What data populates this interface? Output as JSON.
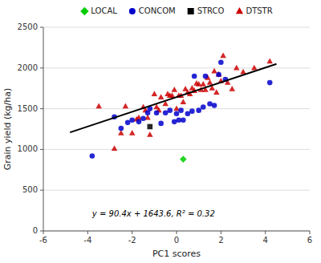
{
  "chart_data": {
    "type": "scatter",
    "xlabel": "PC1 scores",
    "ylabel": "Grain yield (kg/ha)",
    "xlim": [
      -6.0,
      6.0
    ],
    "ylim": [
      0,
      2500
    ],
    "xticks": [
      -6,
      -4,
      -2,
      0,
      2,
      4,
      6
    ],
    "yticks": [
      0,
      500,
      1000,
      1500,
      2000,
      2500
    ],
    "grid": "y",
    "legend": "top",
    "series": [
      {
        "name": "LOCAL",
        "color": "#00cc00",
        "marker": "diamond",
        "x": [
          0.3
        ],
        "y": [
          880
        ]
      },
      {
        "name": "CONCOM",
        "color": "#0000cc",
        "marker": "circle",
        "x": [
          -3.8,
          -2.8,
          -2.5,
          -2.2,
          -2.0,
          -1.7,
          -1.5,
          -1.3,
          -1.2,
          -0.9,
          -0.7,
          -0.5,
          -0.3,
          -0.1,
          0.0,
          0.1,
          0.2,
          0.3,
          0.5,
          0.7,
          0.8,
          1.0,
          1.2,
          1.3,
          1.5,
          1.7,
          1.9,
          2.0,
          2.2,
          4.2
        ],
        "y": [
          920,
          1400,
          1260,
          1330,
          1360,
          1340,
          1380,
          1450,
          1500,
          1450,
          1320,
          1450,
          1480,
          1340,
          1440,
          1360,
          1480,
          1360,
          1440,
          1470,
          1900,
          1480,
          1520,
          1900,
          1560,
          1540,
          1920,
          2070,
          1860,
          1820
        ]
      },
      {
        "name": "STRCO",
        "color": "#000000",
        "marker": "square",
        "x": [
          -1.2
        ],
        "y": [
          1280
        ]
      },
      {
        "name": "DTSTR",
        "color": "#cc0000",
        "marker": "triangle",
        "x": [
          -3.5,
          -2.8,
          -2.5,
          -2.3,
          -2.0,
          -1.8,
          -1.7,
          -1.5,
          -1.4,
          -1.3,
          -1.2,
          -1.0,
          -0.9,
          -0.8,
          -0.7,
          -0.5,
          -0.4,
          -0.3,
          -0.2,
          -0.1,
          0.0,
          0.1,
          0.2,
          0.3,
          0.4,
          0.5,
          0.6,
          0.7,
          0.8,
          0.9,
          1.0,
          1.1,
          1.2,
          1.3,
          1.4,
          1.5,
          1.6,
          1.7,
          1.8,
          1.9,
          2.0,
          2.1,
          2.3,
          2.5,
          2.7,
          3.0,
          3.5,
          4.2
        ],
        "y": [
          1530,
          1010,
          1200,
          1530,
          1200,
          1370,
          1390,
          1520,
          1480,
          1390,
          1180,
          1680,
          1520,
          1480,
          1640,
          1560,
          1680,
          1660,
          1660,
          1730,
          1500,
          1660,
          1660,
          1580,
          1740,
          1700,
          1680,
          1750,
          1720,
          1810,
          1800,
          1730,
          1800,
          1730,
          1880,
          1820,
          1750,
          1960,
          1700,
          1920,
          1840,
          2150,
          1820,
          1740,
          2000,
          1950,
          2000,
          2080
        ]
      },
      {
        "type": "line",
        "color": "#000000",
        "x": [
          -4.8,
          4.5
        ],
        "y": [
          1209.68,
          2050.4
        ]
      }
    ],
    "annotations": [
      {
        "text": "y = 90.4x + 1643.6, R² = 0.32",
        "x": -3.8,
        "y": 180
      }
    ]
  }
}
